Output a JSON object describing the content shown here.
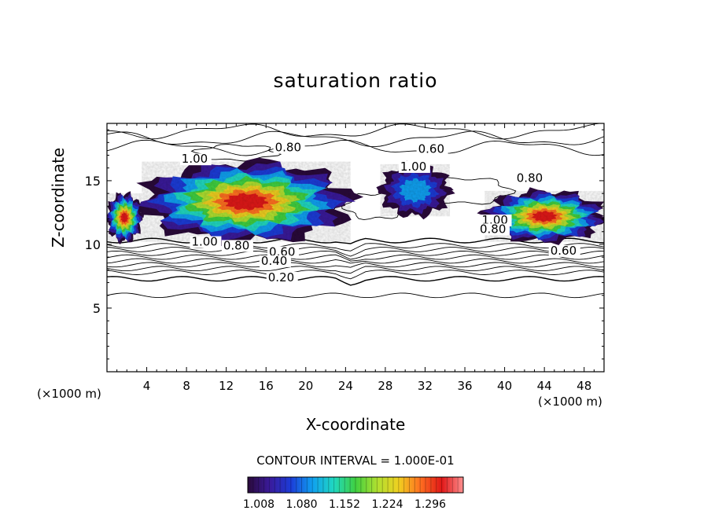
{
  "chart_data": {
    "type": "heatmap",
    "title": "saturation ratio",
    "xlabel": "X-coordinate",
    "ylabel": "Z-coordinate",
    "x_unit": "(×1000 m)",
    "z_unit": "(×1000 m)",
    "xlim": [
      0,
      50
    ],
    "ylim": [
      0,
      19.5
    ],
    "x_ticks": [
      4,
      8,
      12,
      16,
      20,
      24,
      28,
      32,
      36,
      40,
      44,
      48
    ],
    "y_ticks": [
      5,
      10,
      15
    ],
    "contour_interval_label": "CONTOUR INTERVAL = 1.000E-01",
    "colorbar": {
      "ticks": [
        "1.008",
        "1.080",
        "1.152",
        "1.224",
        "1.296"
      ],
      "colors": [
        "#2a0a3a",
        "#3a1a9a",
        "#1c3cd8",
        "#10a0f0",
        "#20d8c0",
        "#40d040",
        "#b0e030",
        "#f0d020",
        "#ff7020",
        "#e01818",
        "#ff9090"
      ]
    },
    "contour_labels": [
      {
        "text": "0.80",
        "x": 16.9,
        "z": 17.3
      },
      {
        "text": "0.60",
        "x": 31.3,
        "z": 17.2
      },
      {
        "text": "1.00",
        "x": 7.5,
        "z": 16.4
      },
      {
        "text": "1.00",
        "x": 29.5,
        "z": 15.8
      },
      {
        "text": "0.80",
        "x": 41.2,
        "z": 14.9
      },
      {
        "text": "1.00",
        "x": 37.7,
        "z": 11.6
      },
      {
        "text": "0.80",
        "x": 37.5,
        "z": 10.9
      },
      {
        "text": "1.00",
        "x": 8.5,
        "z": 9.9
      },
      {
        "text": "0.80",
        "x": 11.7,
        "z": 9.6
      },
      {
        "text": "0.60",
        "x": 16.3,
        "z": 9.1
      },
      {
        "text": "0.60",
        "x": 44.6,
        "z": 9.2
      },
      {
        "text": "0.40",
        "x": 15.5,
        "z": 8.4
      },
      {
        "text": "0.20",
        "x": 16.2,
        "z": 7.1
      }
    ],
    "cloud_regions": [
      {
        "x0": 3.5,
        "x1": 24.5,
        "z0": 10.2,
        "z1": 16.5,
        "max": 1.35
      },
      {
        "x0": 0.0,
        "x1": 3.5,
        "z0": 10.2,
        "z1": 14.0,
        "max": 1.35
      },
      {
        "x0": 27.5,
        "x1": 34.5,
        "z0": 12.2,
        "z1": 16.3,
        "max": 1.15
      },
      {
        "x0": 38.0,
        "x1": 50.0,
        "z0": 10.2,
        "z1": 14.2,
        "max": 1.35
      }
    ]
  }
}
